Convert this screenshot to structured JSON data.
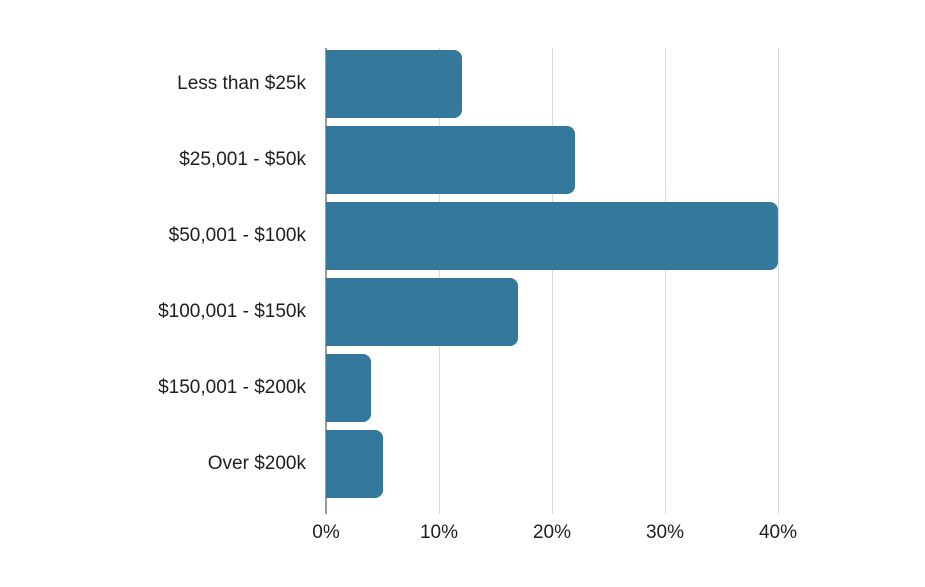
{
  "chart_data": {
    "type": "bar",
    "orientation": "horizontal",
    "title": "",
    "xlabel": "",
    "ylabel": "",
    "categories": [
      "Less than $25k",
      "$25,001 - $50k",
      "$50,001 - $100k",
      "$100,001 - $150k",
      "$150,001 - $200k",
      "Over $200k"
    ],
    "values": [
      12,
      22,
      40,
      17,
      4,
      5
    ],
    "unit": "%",
    "xlim": [
      0,
      40
    ],
    "xticks": [
      0,
      10,
      20,
      30,
      40
    ],
    "xtick_labels": [
      "0%",
      "10%",
      "20%",
      "30%",
      "40%"
    ],
    "grid": true,
    "legend": false,
    "colors": {
      "bar": "#34789B",
      "gridline": "#DBDBDB",
      "axis_line": "#9B9B9B",
      "text": "#1E1E1E",
      "background": "#FFFFFF"
    }
  }
}
